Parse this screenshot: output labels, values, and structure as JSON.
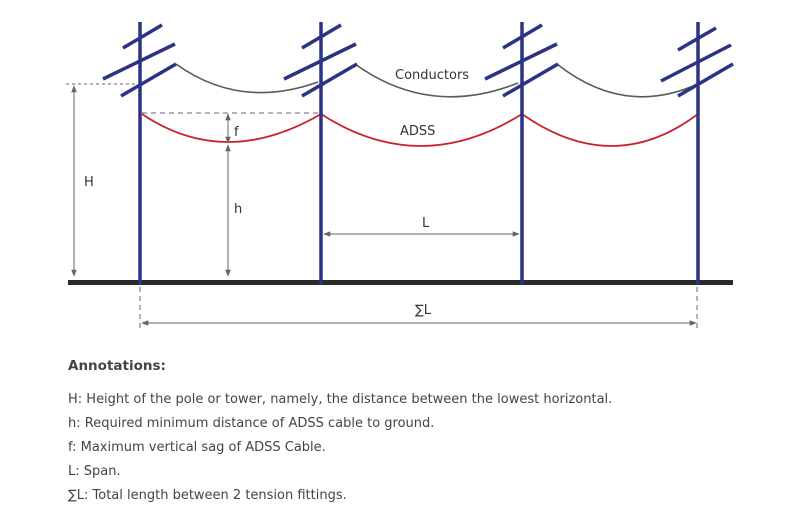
{
  "diagram": {
    "labels": {
      "conductors": "Conductors",
      "adss": "ADSS",
      "H": "H",
      "h": "h",
      "f": "f",
      "L": "L",
      "sum_L": "∑L"
    },
    "colors": {
      "pole": "#2b3384",
      "conductor": "#5a5a5a",
      "adss": "#c8232c",
      "ground": "#2a2a2a",
      "dimension": "#666666"
    }
  },
  "annotations": {
    "title": "Annotations:",
    "items": [
      "H: Height of the pole or tower, namely, the distance between the lowest horizontal.",
      "h: Required minimum distance of ADSS cable to ground.",
      "f: Maximum vertical sag of ADSS Cable.",
      "L: Span.",
      "∑L: Total length between 2 tension fittings."
    ]
  }
}
